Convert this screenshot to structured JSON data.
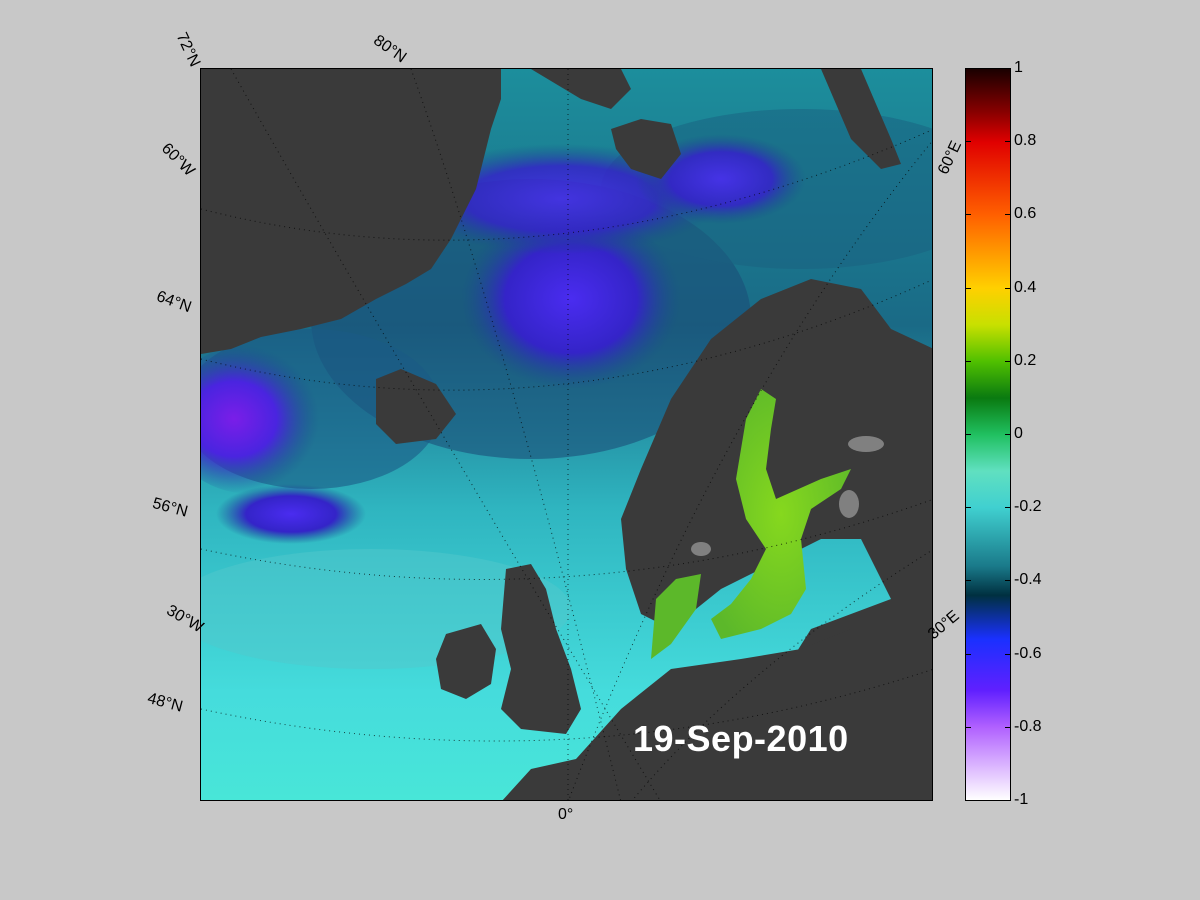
{
  "map": {
    "date": "19-Sep-2010",
    "projection": "polar stereographic",
    "lat_labels": [
      "72°N",
      "80°N",
      "60°W",
      "64°N",
      "56°N",
      "30°W",
      "48°N"
    ],
    "lon_labels": [
      "0°",
      "60°E",
      "30°E"
    ],
    "colors": {
      "land": "#3a3a3a",
      "background": "#c8c8c8",
      "ice": "#808080",
      "ocean_low": "#3a2bd0",
      "ocean_mid": "#1a8a9a",
      "ocean_high": "#45e0e0",
      "baltic": "#7ad21e"
    }
  },
  "colorbar": {
    "min": -1,
    "max": 1,
    "ticks": [
      "1",
      "0.8",
      "0.6",
      "0.4",
      "0.2",
      "0",
      "-0.2",
      "-0.4",
      "-0.6",
      "-0.8",
      "-1"
    ]
  }
}
